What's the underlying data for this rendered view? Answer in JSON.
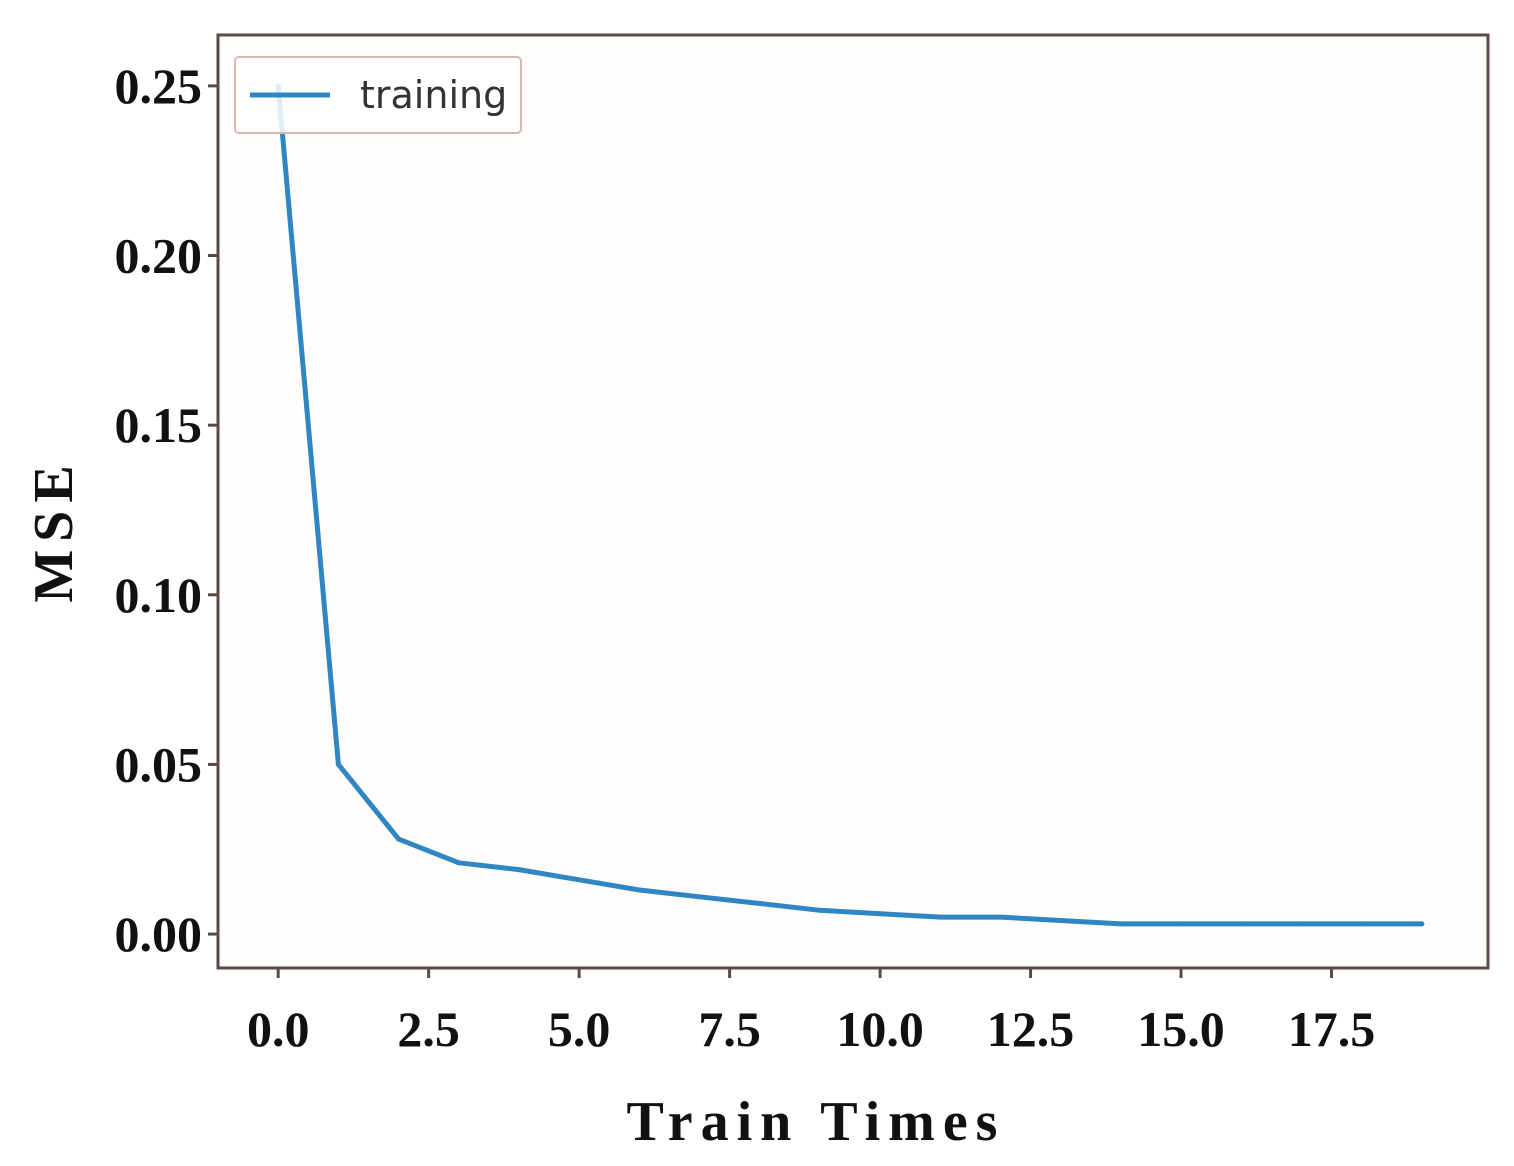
{
  "chart_data": {
    "type": "line",
    "xlabel": "Train Times",
    "ylabel": "MSE",
    "xlim": [
      -1,
      20.1
    ],
    "ylim": [
      -0.01,
      0.265
    ],
    "x_ticks": [
      0.0,
      2.5,
      5.0,
      7.5,
      10.0,
      12.5,
      15.0,
      17.5
    ],
    "x_tick_labels": [
      "0.0",
      "2.5",
      "5.0",
      "7.5",
      "10.0",
      "12.5",
      "15.0",
      "17.5"
    ],
    "y_ticks": [
      0.0,
      0.05,
      0.1,
      0.15,
      0.2,
      0.25
    ],
    "y_tick_labels": [
      "0.00",
      "0.05",
      "0.10",
      "0.15",
      "0.20",
      "0.25"
    ],
    "grid": false,
    "legend_position": "top-left",
    "series": [
      {
        "name": "training",
        "color": "#2f86c2",
        "x": [
          0,
          1,
          2,
          3,
          4,
          5,
          6,
          7,
          8,
          9,
          10,
          11,
          12,
          13,
          14,
          15,
          16,
          17,
          18,
          19
        ],
        "values": [
          0.25,
          0.05,
          0.028,
          0.021,
          0.019,
          0.016,
          0.013,
          0.011,
          0.009,
          0.007,
          0.006,
          0.005,
          0.005,
          0.004,
          0.003,
          0.003,
          0.003,
          0.003,
          0.003,
          0.003
        ]
      }
    ]
  },
  "colors": {
    "frame": "#5a4a44",
    "line": "#2f86c2",
    "legend_border": "#d9b8b0",
    "background": "#fefdfb"
  }
}
